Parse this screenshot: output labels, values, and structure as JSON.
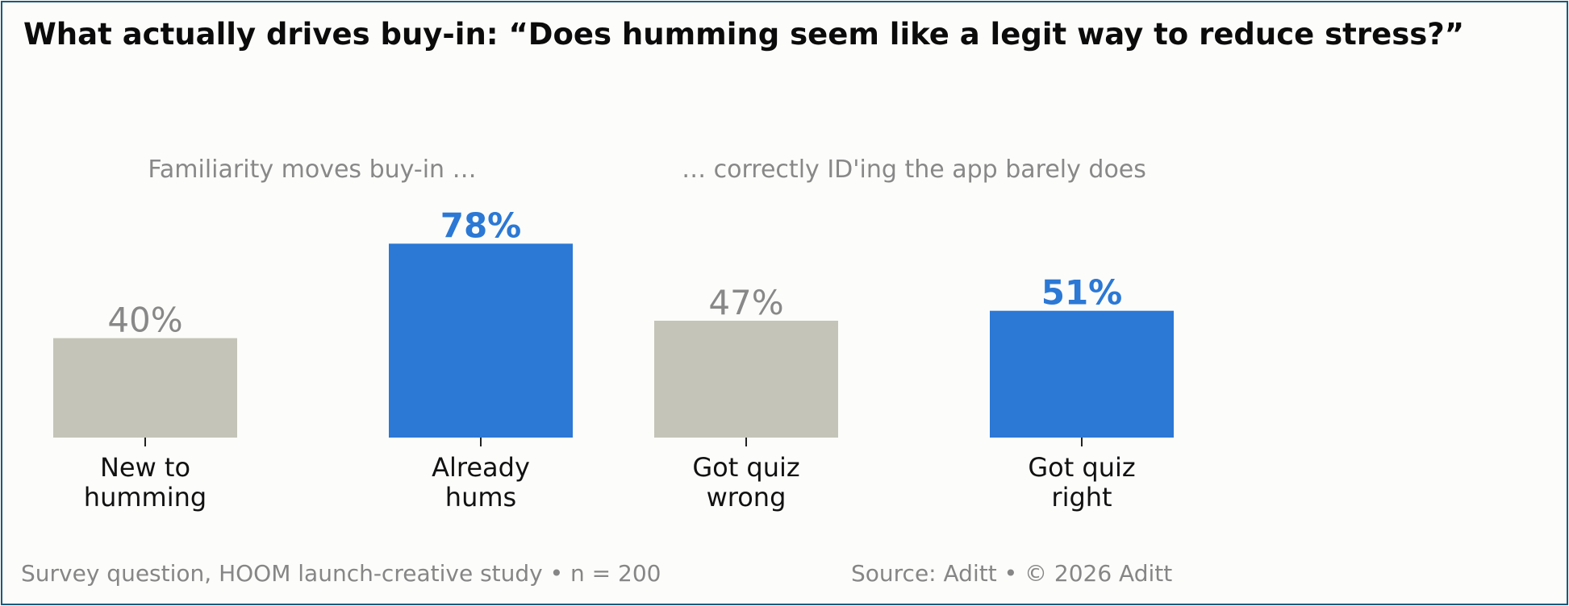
{
  "chart_data": {
    "type": "bar",
    "title": "What actually drives buy-in: “Does humming seem like a legit way to reduce stress?”",
    "annotations": [
      "Familiarity moves buy-in …",
      "… correctly ID'ing the app barely does"
    ],
    "categories": [
      [
        "New to",
        "humming"
      ],
      [
        "Already",
        "hums"
      ],
      [
        "Got quiz",
        "wrong"
      ],
      [
        "Got quiz",
        "right"
      ]
    ],
    "values": [
      40,
      78,
      47,
      51
    ],
    "value_labels": [
      "40%",
      "78%",
      "47%",
      "51%"
    ],
    "highlighted": [
      false,
      true,
      false,
      true
    ],
    "colors": {
      "muted_bar": "#c4c4b8",
      "highlight_bar": "#2b78d5",
      "muted_label": "#888888",
      "highlight_label": "#2b78d5",
      "category_text": "#111111",
      "annotation_text": "#888888"
    },
    "ylim": [
      0,
      100
    ],
    "grid": false,
    "legend": "none"
  },
  "footer": {
    "left": "Survey question, HOOM launch-creative study  •  n = 200",
    "right": "Source: Aditt  •  © 2026 Aditt"
  }
}
